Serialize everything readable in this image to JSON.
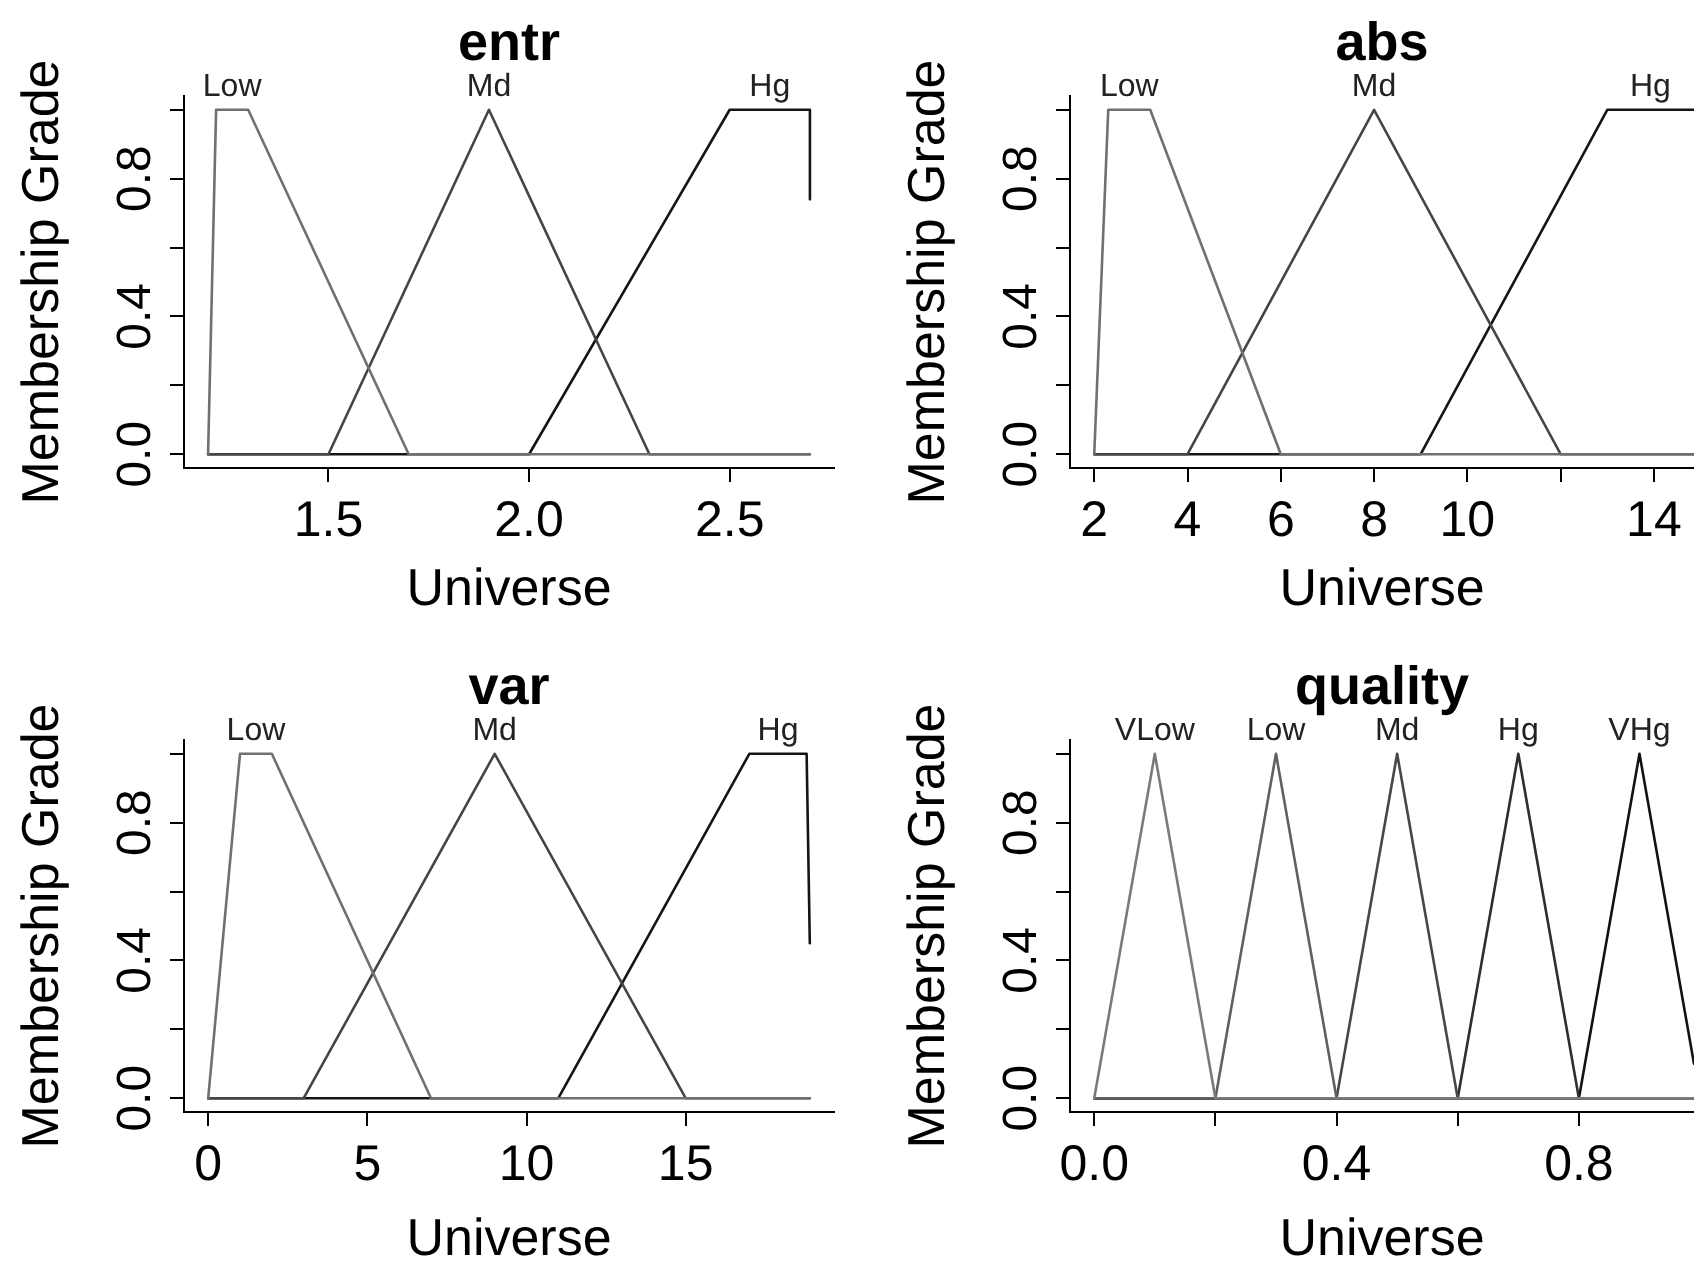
{
  "chart_data": [
    {
      "type": "line",
      "title": "entr",
      "xlabel": "Universe",
      "ylabel": "Membership Grade",
      "xlim": [
        1.14,
        2.76
      ],
      "ylim": [
        -0.04,
        1.04
      ],
      "xticks": [
        1.5,
        {
          "value": 2,
          "label": "2.0"
        },
        2.5
      ],
      "yticks": [
        {
          "value": 0,
          "label": "0.0"
        },
        {
          "value": 0.2,
          "label": null
        },
        {
          "value": 0.4,
          "label": "0.4"
        },
        {
          "value": 0.6,
          "label": null
        },
        {
          "value": 0.8,
          "label": "0.8"
        },
        {
          "value": 1,
          "label": null
        }
      ],
      "series": [
        {
          "name": "Low",
          "color": "#707070",
          "x": [
            1.2,
            1.22,
            1.3,
            1.7,
            2.7
          ],
          "values": [
            0,
            1,
            1,
            0,
            0
          ]
        },
        {
          "name": "Md",
          "color": "#454545",
          "x": [
            1.2,
            1.5,
            1.9,
            2.3,
            2.7
          ],
          "values": [
            0,
            0,
            1,
            0,
            0
          ]
        },
        {
          "name": "Hg",
          "color": "#151515",
          "x": [
            1.2,
            2.0,
            2.5,
            2.7,
            2.7
          ],
          "values": [
            0,
            0,
            1,
            1,
            0.74
          ]
        }
      ]
    },
    {
      "type": "line",
      "title": "abs",
      "xlabel": "Universe",
      "ylabel": "Membership Grade",
      "xlim": [
        1.48,
        14.86
      ],
      "ylim": [
        -0.04,
        1.04
      ],
      "xticks": [
        2,
        4,
        6,
        8,
        10,
        {
          "value": 12,
          "label": null
        },
        14
      ],
      "yticks": [
        {
          "value": 0,
          "label": "0.0"
        },
        {
          "value": 0.2,
          "label": null
        },
        {
          "value": 0.4,
          "label": "0.4"
        },
        {
          "value": 0.6,
          "label": null
        },
        {
          "value": 0.8,
          "label": "0.8"
        },
        {
          "value": 1,
          "label": null
        }
      ],
      "series": [
        {
          "name": "Low",
          "color": "#707070",
          "x": [
            2,
            2.3,
            3.2,
            6,
            14.85
          ],
          "values": [
            0,
            1,
            1,
            0,
            0
          ]
        },
        {
          "name": "Md",
          "color": "#454545",
          "x": [
            2,
            4,
            8,
            12,
            14.85
          ],
          "values": [
            0,
            0,
            1,
            0,
            0
          ]
        },
        {
          "name": "Hg",
          "color": "#151515",
          "x": [
            2,
            9,
            13,
            14.85
          ],
          "values": [
            0,
            0,
            1,
            1
          ]
        }
      ]
    },
    {
      "type": "line",
      "title": "var",
      "xlabel": "Universe",
      "ylabel": "Membership Grade",
      "xlim": [
        -0.76,
        19.66
      ],
      "ylim": [
        -0.04,
        1.04
      ],
      "xticks": [
        0,
        5,
        10,
        15
      ],
      "yticks": [
        {
          "value": 0,
          "label": "0.0"
        },
        {
          "value": 0.2,
          "label": null
        },
        {
          "value": 0.4,
          "label": "0.4"
        },
        {
          "value": 0.6,
          "label": null
        },
        {
          "value": 0.8,
          "label": "0.8"
        },
        {
          "value": 1,
          "label": null
        }
      ],
      "series": [
        {
          "name": "Low",
          "color": "#707070",
          "x": [
            0,
            1,
            2,
            7,
            18.9
          ],
          "values": [
            0,
            1,
            1,
            0,
            0
          ]
        },
        {
          "name": "Md",
          "color": "#454545",
          "x": [
            0,
            3,
            9,
            15,
            18.9
          ],
          "values": [
            0,
            0,
            1,
            0,
            0
          ]
        },
        {
          "name": "Hg",
          "color": "#151515",
          "x": [
            0,
            11,
            17,
            18.8,
            18.9
          ],
          "values": [
            0,
            0,
            1,
            1,
            0.45
          ]
        }
      ]
    },
    {
      "type": "line",
      "title": "quality",
      "xlabel": "Universe",
      "ylabel": "Membership Grade",
      "xlim": [
        -0.04,
        0.99
      ],
      "ylim": [
        -0.04,
        1.04
      ],
      "xticks": [
        {
          "value": 0,
          "label": "0.0"
        },
        {
          "value": 0.2,
          "label": null
        },
        0.4,
        {
          "value": 0.6,
          "label": null
        },
        0.8
      ],
      "yticks": [
        {
          "value": 0,
          "label": "0.0"
        },
        {
          "value": 0.2,
          "label": null
        },
        {
          "value": 0.4,
          "label": "0.4"
        },
        {
          "value": 0.6,
          "label": null
        },
        {
          "value": 0.8,
          "label": "0.8"
        },
        {
          "value": 1,
          "label": null
        }
      ],
      "series": [
        {
          "name": "VLow",
          "color": "#7a7a7a",
          "x": [
            0,
            0.1,
            0.2,
            0.99
          ],
          "values": [
            0,
            1,
            0,
            0
          ]
        },
        {
          "name": "Low",
          "color": "#606060",
          "x": [
            0,
            0.2,
            0.3,
            0.4,
            0.99
          ],
          "values": [
            0,
            0,
            1,
            0,
            0
          ]
        },
        {
          "name": "Md",
          "color": "#474747",
          "x": [
            0,
            0.4,
            0.5,
            0.6,
            0.99
          ],
          "values": [
            0,
            0,
            1,
            0,
            0
          ]
        },
        {
          "name": "Hg",
          "color": "#2e2e2e",
          "x": [
            0,
            0.6,
            0.7,
            0.8,
            0.99
          ],
          "values": [
            0,
            0,
            1,
            0,
            0
          ]
        },
        {
          "name": "VHg",
          "color": "#121212",
          "x": [
            0,
            0.8,
            0.9,
            0.99
          ],
          "values": [
            0,
            0,
            1,
            0.1
          ]
        }
      ]
    }
  ]
}
